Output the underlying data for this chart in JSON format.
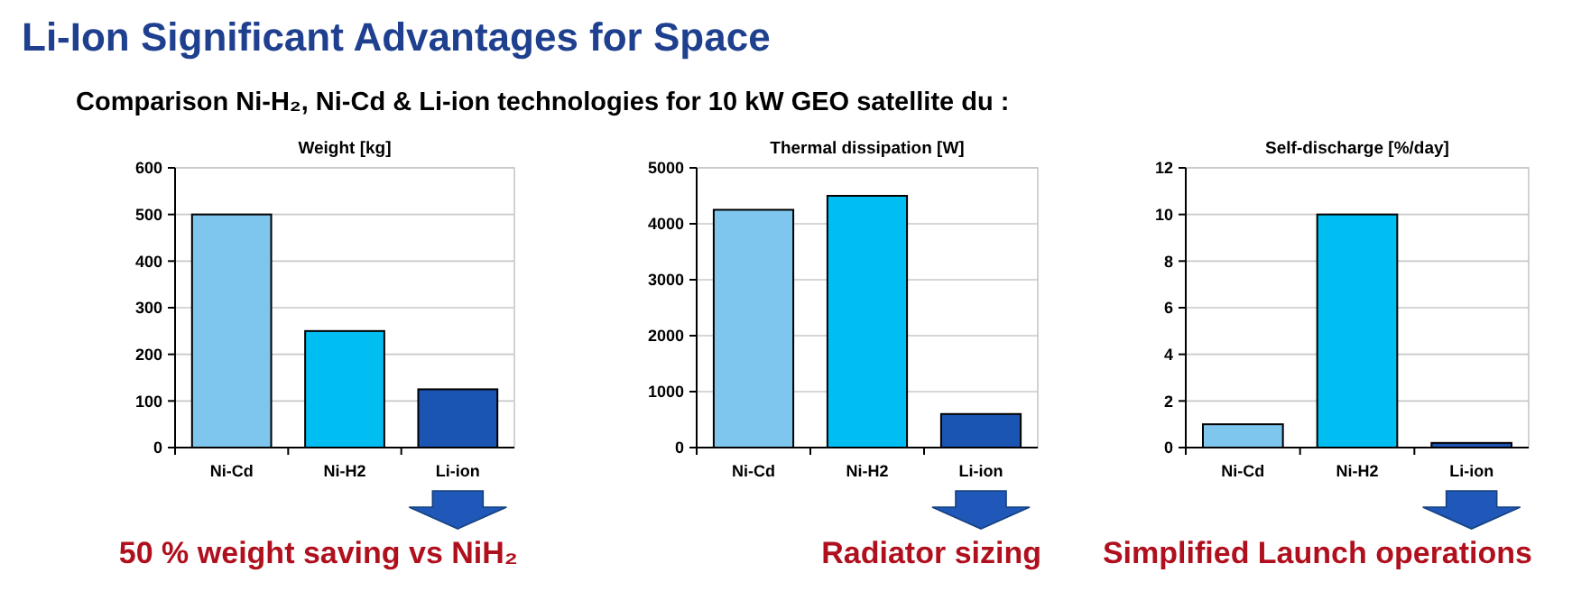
{
  "chart_data": [
    {
      "type": "other",
      "title": "Li-Ion Significant Advantages for Space",
      "subtitle": "Comparison Ni-H₂, Ni-Cd & Li-ion technologies for  10 kW GEO satellite du :"
    },
    {
      "type": "bar",
      "title": "Weight [kg]",
      "categories": [
        "Ni-Cd",
        "Ni-H2",
        "Li-ion"
      ],
      "values": [
        500,
        250,
        125
      ],
      "colors": [
        "#7fc6ee",
        "#00bdf2",
        "#1b55b3"
      ],
      "ylim": [
        0,
        600
      ],
      "yticks": [
        0,
        100,
        200,
        300,
        400,
        500,
        600
      ],
      "grid": "y",
      "annotations": [
        "50 % weight saving vs NiH₂"
      ]
    },
    {
      "type": "bar",
      "title": "Thermal dissipation  [W]",
      "categories": [
        "Ni-Cd",
        "Ni-H2",
        "Li-ion"
      ],
      "values": [
        4250,
        4500,
        600
      ],
      "colors": [
        "#7fc6ee",
        "#00bdf2",
        "#1b55b3"
      ],
      "ylim": [
        0,
        5000
      ],
      "yticks": [
        0,
        1000,
        2000,
        3000,
        4000,
        5000
      ],
      "grid": "y",
      "annotations": [
        "Radiator sizing"
      ]
    },
    {
      "type": "bar",
      "title": "Self-discharge [%/day]",
      "categories": [
        "Ni-Cd",
        "Ni-H2",
        "Li-ion"
      ],
      "values": [
        1,
        10,
        0.2
      ],
      "colors": [
        "#7fc6ee",
        "#00bdf2",
        "#1b55b3"
      ],
      "ylim": [
        0,
        12
      ],
      "yticks": [
        0,
        2,
        4,
        6,
        8,
        10,
        12
      ],
      "grid": "y",
      "annotations": [
        "Simplified Launch operations"
      ]
    }
  ]
}
